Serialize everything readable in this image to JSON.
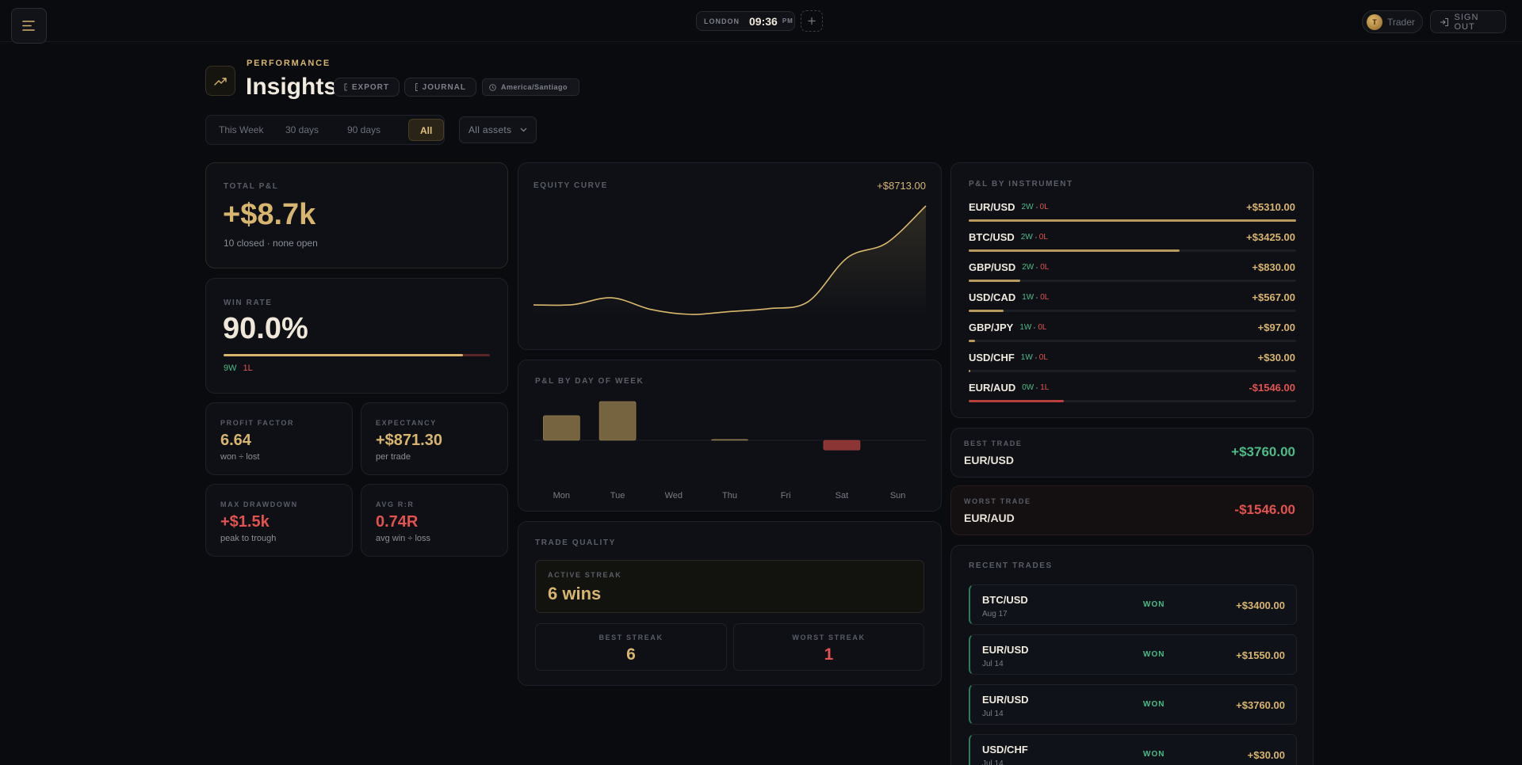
{
  "topbar": {
    "clock": {
      "city": "LONDON",
      "time": "09:36",
      "ampm": "PM"
    },
    "user": {
      "initial": "T",
      "name": "Trader"
    },
    "signout": "SIGN OUT"
  },
  "header": {
    "eyebrow": "PERFORMANCE",
    "title": "Insights",
    "buttons": [
      "EXPORT",
      "JOURNAL"
    ],
    "timezone": "America/Santiago"
  },
  "filters": {
    "ranges": [
      "This Week",
      "30 days",
      "90 days",
      "All"
    ],
    "active": 3,
    "assets": "All assets"
  },
  "stats": {
    "total_pnl": {
      "label": "TOTAL P&L",
      "value": "+$8.7k",
      "note": "10 closed · none open"
    },
    "win_rate": {
      "label": "WIN RATE",
      "value": "90.0%",
      "percent": 90,
      "wins": "9W",
      "losses": "1L"
    },
    "small": [
      {
        "label": "PROFIT FACTOR",
        "value": "6.64",
        "note": "won ÷ lost",
        "tone": "gold"
      },
      {
        "label": "EXPECTANCY",
        "value": "+$871.30",
        "note": "per trade",
        "tone": "gold"
      },
      {
        "label": "MAX DRAWDOWN",
        "value": "+$1.5k",
        "note": "peak to trough",
        "tone": "red"
      },
      {
        "label": "AVG R:R",
        "value": "0.74R",
        "note": "avg win ÷ loss",
        "tone": "red"
      }
    ]
  },
  "chart_data": [
    {
      "type": "line",
      "title": "EQUITY CURVE",
      "end_label": "+$8713.00",
      "values": [
        0,
        30,
        630,
        -400,
        -830,
        -580,
        -320,
        290,
        4160,
        5450,
        8713
      ],
      "color": "#d9b86c"
    },
    {
      "type": "bar",
      "title": "P&L BY DAY OF WEEK",
      "categories": [
        "Mon",
        "Tue",
        "Wed",
        "Thu",
        "Fri",
        "Sat",
        "Sun"
      ],
      "values": [
        3930,
        6200,
        0,
        129,
        0,
        -1546,
        0
      ],
      "positive_color": "#75643f",
      "negative_color": "#8c3535"
    }
  ],
  "instruments": {
    "title": "P&L BY INSTRUMENT",
    "rows": [
      {
        "name": "EUR/USD",
        "wins": "2W",
        "losses": "0L",
        "value": 5310,
        "value_label": "+$5310.00"
      },
      {
        "name": "BTC/USD",
        "wins": "2W",
        "losses": "0L",
        "value": 3425,
        "value_label": "+$3425.00"
      },
      {
        "name": "GBP/USD",
        "wins": "2W",
        "losses": "0L",
        "value": 830,
        "value_label": "+$830.00"
      },
      {
        "name": "USD/CAD",
        "wins": "1W",
        "losses": "0L",
        "value": 567,
        "value_label": "+$567.00"
      },
      {
        "name": "GBP/JPY",
        "wins": "1W",
        "losses": "0L",
        "value": 97,
        "value_label": "+$97.00"
      },
      {
        "name": "USD/CHF",
        "wins": "1W",
        "losses": "0L",
        "value": 30,
        "value_label": "+$30.00"
      },
      {
        "name": "EUR/AUD",
        "wins": "0W",
        "losses": "1L",
        "value": -1546,
        "value_label": "-$1546.00"
      }
    ]
  },
  "best_trade": {
    "label": "BEST TRADE",
    "pair": "EUR/USD",
    "value": "+$3760.00"
  },
  "worst_trade": {
    "label": "WORST TRADE",
    "pair": "EUR/AUD",
    "value": "-$1546.00"
  },
  "trade_quality": {
    "title": "TRADE QUALITY",
    "active_label": "ACTIVE STREAK",
    "active_value": "6 wins",
    "best_label": "BEST STREAK",
    "best_value": "6",
    "worst_label": "WORST STREAK",
    "worst_value": "1"
  },
  "recent_trades": {
    "title": "RECENT TRADES",
    "rows": [
      {
        "pair": "BTC/USD",
        "date": "Aug 17",
        "status": "WON",
        "value": "+$3400.00"
      },
      {
        "pair": "EUR/USD",
        "date": "Jul 14",
        "status": "WON",
        "value": "+$1550.00"
      },
      {
        "pair": "EUR/USD",
        "date": "Jul 14",
        "status": "WON",
        "value": "+$3760.00"
      },
      {
        "pair": "USD/CHF",
        "date": "Jul 14",
        "status": "WON",
        "value": "+$30.00"
      }
    ]
  }
}
